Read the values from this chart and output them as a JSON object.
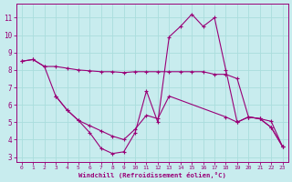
{
  "bg_color": "#c8ecee",
  "line_color": "#990077",
  "grid_color": "#aadddd",
  "xlabel": "Windchill (Refroidissement éolien,°C)",
  "xlim": [
    -0.5,
    23.5
  ],
  "ylim": [
    2.7,
    11.8
  ],
  "yticks": [
    3,
    4,
    5,
    6,
    7,
    8,
    9,
    10,
    11
  ],
  "xticks": [
    0,
    1,
    2,
    3,
    4,
    5,
    6,
    7,
    8,
    9,
    10,
    11,
    12,
    13,
    14,
    15,
    16,
    17,
    18,
    19,
    20,
    21,
    22,
    23
  ],
  "series1_x": [
    0,
    1,
    2,
    3,
    4,
    5,
    6,
    7,
    8,
    9,
    10,
    11,
    12,
    13,
    14,
    15,
    16,
    17,
    18,
    19,
    20,
    21,
    22,
    23
  ],
  "series1_y": [
    8.5,
    8.6,
    8.2,
    8.2,
    8.1,
    8.0,
    7.95,
    7.9,
    7.9,
    7.85,
    7.9,
    7.9,
    7.9,
    7.9,
    7.9,
    7.9,
    7.9,
    7.75,
    7.75,
    7.5,
    5.3,
    5.2,
    5.05,
    3.6
  ],
  "series2_x": [
    0,
    1,
    2,
    3,
    4,
    5,
    6,
    7,
    8,
    9,
    10,
    11,
    12,
    13,
    14,
    15,
    16,
    17,
    18,
    19,
    20,
    21,
    22,
    23
  ],
  "series2_y": [
    8.5,
    8.6,
    8.2,
    6.5,
    5.7,
    5.1,
    4.4,
    3.5,
    3.2,
    3.3,
    4.4,
    6.8,
    5.0,
    9.9,
    10.5,
    11.2,
    10.5,
    11.0,
    8.0,
    5.0,
    5.3,
    5.2,
    4.7,
    3.6
  ],
  "series3_x": [
    3,
    4,
    5,
    6,
    7,
    8,
    9,
    10,
    11,
    12,
    13,
    18,
    19,
    20,
    21,
    22,
    23
  ],
  "series3_y": [
    6.5,
    5.7,
    5.1,
    4.8,
    4.5,
    4.2,
    4.0,
    4.6,
    5.4,
    5.2,
    6.5,
    5.3,
    5.0,
    5.3,
    5.2,
    4.7,
    3.6
  ],
  "figsize": [
    3.2,
    2.0
  ],
  "dpi": 100
}
